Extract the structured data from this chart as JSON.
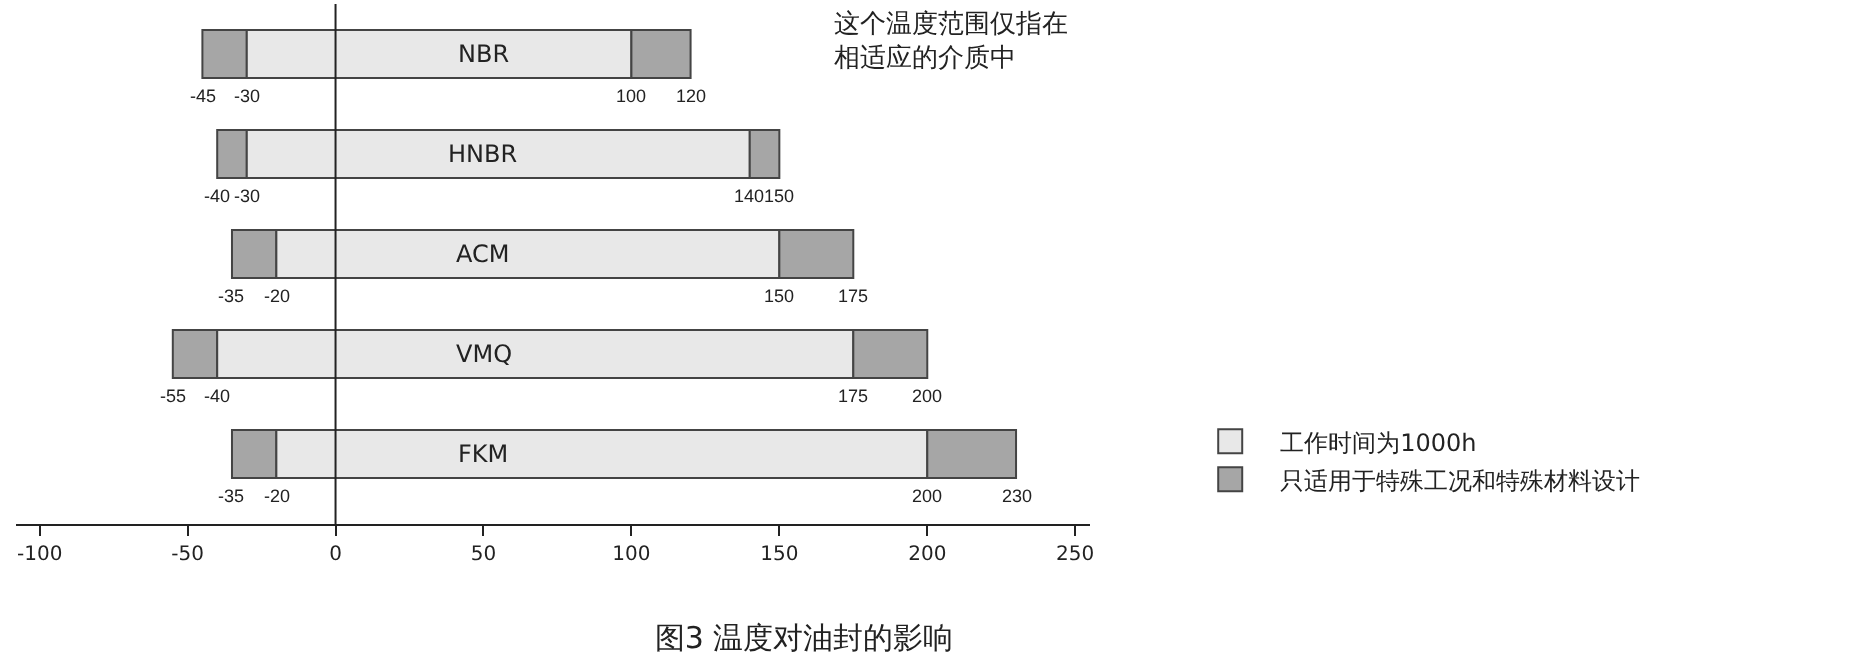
{
  "chart_data": {
    "type": "bar",
    "orientation": "horizontal",
    "title": "图3 温度对油封的影响",
    "categories": [
      "NBR",
      "HNBR",
      "ACM",
      "VMQ",
      "FKM"
    ],
    "series": [
      {
        "name": "只适用于特殊工况和特殊材料设计",
        "color": "#a6a6a6",
        "base": [
          -45,
          -40,
          -35,
          -55,
          -35
        ],
        "values": [
          15,
          10,
          15,
          15,
          15
        ]
      },
      {
        "name": "工作时间为1000h",
        "color": "#e8e8e8",
        "base": [
          -30,
          -30,
          -20,
          -40,
          -20
        ],
        "values": [
          130,
          170,
          170,
          215,
          220
        ]
      },
      {
        "color": "#a6a6a6",
        "base": [
          100,
          140,
          150,
          175,
          200
        ],
        "values": [
          20,
          10,
          25,
          25,
          30
        ]
      }
    ],
    "xlim": [
      -108,
      255
    ],
    "xticks": [
      -100,
      -50,
      0,
      50,
      100,
      150,
      200,
      250
    ],
    "ref_lines": [
      {
        "axis": "x",
        "value": 0
      }
    ],
    "legend": "right",
    "annotations": [
      "这个温度范围仅指在相适应的介质中",
      {
        "text": "-45",
        "x": -45,
        "y": "NBR"
      },
      {
        "text": "-30",
        "x": -30,
        "y": "NBR"
      },
      {
        "text": "100",
        "x": 100,
        "y": "NBR"
      },
      {
        "text": "120",
        "x": 120,
        "y": "NBR"
      },
      {
        "text": "-40",
        "x": -40,
        "y": "HNBR"
      },
      {
        "text": "-30",
        "x": -30,
        "y": "HNBR"
      },
      {
        "text": "140",
        "x": 140,
        "y": "HNBR"
      },
      {
        "text": "150",
        "x": 150,
        "y": "HNBR"
      },
      {
        "text": "-35",
        "x": -35,
        "y": "ACM"
      },
      {
        "text": "-20",
        "x": -20,
        "y": "ACM"
      },
      {
        "text": "150",
        "x": 150,
        "y": "ACM"
      },
      {
        "text": "175",
        "x": 175,
        "y": "ACM"
      },
      {
        "text": "-55",
        "x": -55,
        "y": "VMQ"
      },
      {
        "text": "-40",
        "x": -40,
        "y": "VMQ"
      },
      {
        "text": "175",
        "x": 175,
        "y": "VMQ"
      },
      {
        "text": "200",
        "x": 200,
        "y": "VMQ"
      },
      {
        "text": "-35",
        "x": -35,
        "y": "FKM"
      },
      {
        "text": "-20",
        "x": -20,
        "y": "FKM"
      },
      {
        "text": "200",
        "x": 200,
        "y": "FKM"
      },
      {
        "text": "230",
        "x": 230,
        "y": "FKM"
      }
    ]
  }
}
